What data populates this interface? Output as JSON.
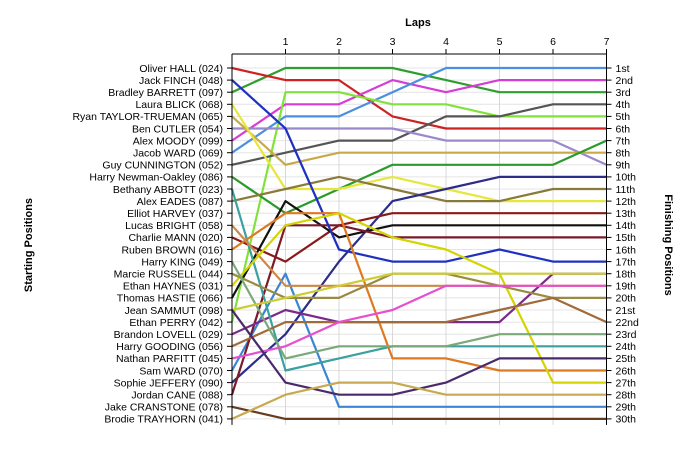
{
  "chart_data": {
    "type": "line",
    "title": "",
    "xlabel": "Laps",
    "ylabel_left": "Starting Positions",
    "ylabel_right": "Finishing Positions",
    "x": [
      0,
      1,
      2,
      3,
      4,
      5,
      6,
      7
    ],
    "x_tick_labels": [
      "1",
      "2",
      "3",
      "4",
      "5",
      "6",
      "7"
    ],
    "grid": true,
    "starting_labels": [
      "Oliver HALL (024)",
      "Jack FINCH (048)",
      "Bradley BARRETT (097)",
      "Laura BLICK (068)",
      "Ryan TAYLOR-TRUEMAN (065)",
      "Ben CUTLER (054)",
      "Alex MOODY (099)",
      "Jacob WARD (069)",
      "Guy CUNNINGTON (052)",
      "Harry Newman-Oakley (086)",
      "Bethany ABBOTT (023)",
      "Alex EADES (087)",
      "Elliot HARVEY (037)",
      "Lucas BRIGHT (058)",
      "Charlie MANN (020)",
      "Ruben BROWN (016)",
      "Harry KING (049)",
      "Marcie RUSSELL (044)",
      "Ethan HAYNES (031)",
      "Thomas HASTIE (066)",
      "Jean SAMMUT (098)",
      "Ethan PERRY (042)",
      "Brandon LOVELL (029)",
      "Harry GOODING (056)",
      "Nathan PARFITT (045)",
      "Sam WARD (070)",
      "Sophie JEFFERY (090)",
      "Jordan CANE (088)",
      "Jake CRANSTONE (078)",
      "Brodie TRAYHORN (041)"
    ],
    "finishing_labels": [
      "1st",
      "2nd",
      "3rd",
      "4th",
      "5th",
      "6th",
      "7th",
      "8th",
      "9th",
      "10th",
      "11th",
      "12th",
      "13th",
      "14th",
      "15th",
      "16th",
      "17th",
      "18th",
      "19th",
      "20th",
      "21st",
      "22nd",
      "23rd",
      "24th",
      "25th",
      "26th",
      "27th",
      "28th",
      "29th",
      "30th"
    ],
    "series": [
      {
        "color": "#3a86d4",
        "positions": [
          26,
          18,
          29,
          29,
          29,
          29,
          29,
          29
        ]
      },
      {
        "color": "#2e9e2e",
        "positions": [
          3,
          1,
          1,
          1,
          2,
          3,
          3,
          3
        ]
      },
      {
        "color": "#cc2222",
        "positions": [
          1,
          2,
          2,
          5,
          6,
          6,
          6,
          6
        ]
      },
      {
        "color": "#d63cd6",
        "positions": [
          7,
          4,
          4,
          2,
          3,
          2,
          2,
          2
        ]
      },
      {
        "color": "#4a8fe0",
        "positions": [
          8,
          5,
          5,
          3,
          1,
          1,
          1,
          1
        ]
      },
      {
        "color": "#82e23c",
        "positions": [
          22,
          3,
          3,
          4,
          4,
          5,
          5,
          5
        ]
      },
      {
        "color": "#555555",
        "positions": [
          9,
          8,
          7,
          7,
          5,
          5,
          4,
          4
        ]
      },
      {
        "color": "#9a88cc",
        "positions": [
          6,
          6,
          6,
          6,
          7,
          7,
          7,
          9
        ]
      },
      {
        "color": "#c8a848",
        "positions": [
          5,
          9,
          8,
          8,
          8,
          8,
          8,
          8
        ]
      },
      {
        "color": "#2a9a2a",
        "positions": [
          10,
          13,
          11,
          9,
          9,
          9,
          9,
          7
        ]
      },
      {
        "color": "#e6e63c",
        "positions": [
          4,
          11,
          11,
          10,
          11,
          12,
          12,
          12
        ]
      },
      {
        "color": "#8a7a3a",
        "positions": [
          12,
          11,
          10,
          11,
          12,
          12,
          11,
          11
        ]
      },
      {
        "color": "#2c2c8a",
        "positions": [
          27,
          23,
          17,
          12,
          11,
          10,
          10,
          10
        ]
      },
      {
        "color": "#8a1a1a",
        "positions": [
          15,
          17,
          14,
          13,
          13,
          13,
          13,
          13
        ]
      },
      {
        "color": "#111111",
        "positions": [
          20,
          12,
          15,
          14,
          14,
          14,
          14,
          14
        ]
      },
      {
        "color": "#7a1a2a",
        "positions": [
          28,
          14,
          14,
          15,
          15,
          15,
          15,
          15
        ]
      },
      {
        "color": "#2030c0",
        "positions": [
          2,
          6,
          16,
          17,
          17,
          16,
          17,
          17
        ]
      },
      {
        "color": "#7a2a8a",
        "positions": [
          23,
          21,
          22,
          22,
          22,
          22,
          18,
          18
        ]
      },
      {
        "color": "#3aa0a0",
        "positions": [
          11,
          26,
          25,
          24,
          24,
          24,
          24,
          24
        ]
      },
      {
        "color": "#e07820",
        "positions": [
          16,
          13,
          13,
          25,
          25,
          26,
          26,
          26
        ]
      },
      {
        "color": "#cc8844",
        "positions": [
          14,
          19,
          19,
          19,
          19,
          19,
          19,
          19
        ]
      },
      {
        "color": "#d4d400",
        "positions": [
          19,
          14,
          13,
          15,
          16,
          18,
          27,
          27
        ]
      },
      {
        "color": "#9a8a40",
        "positions": [
          18,
          20,
          20,
          18,
          18,
          19,
          20,
          20
        ]
      },
      {
        "color": "#a06a3a",
        "positions": [
          24,
          22,
          22,
          22,
          22,
          21,
          20,
          22
        ]
      },
      {
        "color": "#7aa878",
        "positions": [
          17,
          25,
          24,
          24,
          24,
          23,
          23,
          23
        ]
      },
      {
        "color": "#cccc33",
        "positions": [
          21,
          20,
          19,
          18,
          18,
          18,
          18,
          18
        ]
      },
      {
        "color": "#e64fd0",
        "positions": [
          25,
          24,
          22,
          21,
          19,
          19,
          19,
          19
        ]
      },
      {
        "color": "#663d1e",
        "positions": [
          29,
          30,
          30,
          30,
          30,
          30,
          30,
          30
        ]
      },
      {
        "color": "#4a2a6a",
        "positions": [
          21,
          27,
          28,
          28,
          27,
          25,
          25,
          25
        ]
      },
      {
        "color": "#c8a850",
        "positions": [
          30,
          28,
          27,
          27,
          28,
          28,
          28,
          28
        ]
      }
    ]
  }
}
